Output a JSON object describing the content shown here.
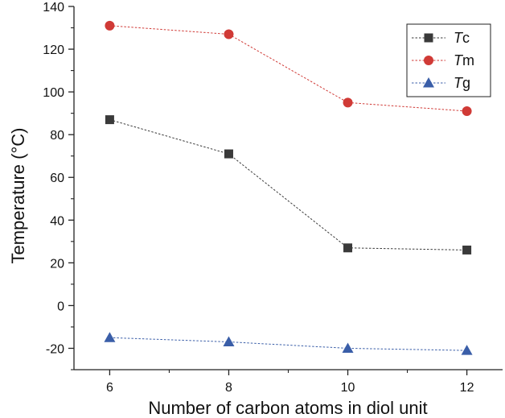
{
  "chart_data": {
    "type": "line",
    "x": [
      6,
      8,
      10,
      12
    ],
    "xlabel": "Number of carbon atoms in diol unit",
    "ylabel": "Temperature (°C)",
    "xlim": [
      5.4,
      12.6
    ],
    "ylim": [
      -30,
      140
    ],
    "x_ticks": [
      "6",
      "8",
      "10",
      "12"
    ],
    "y_ticks": [
      "140",
      "120",
      "100",
      "80",
      "60",
      "40",
      "20",
      "0",
      "-20"
    ],
    "grid": false,
    "legend_position": "top-right",
    "series": [
      {
        "name_italic": "T",
        "name_suffix": "c",
        "marker": "square",
        "color": "#3a3a3a",
        "values": [
          87,
          71,
          27,
          26
        ]
      },
      {
        "name_italic": "T",
        "name_suffix": "m",
        "marker": "circle",
        "color": "#d03a36",
        "values": [
          131,
          127,
          95,
          91
        ]
      },
      {
        "name_italic": "T",
        "name_suffix": "g",
        "marker": "triangle",
        "color": "#3a5ea8",
        "values": [
          -15,
          -17,
          -20,
          -21
        ]
      }
    ]
  }
}
